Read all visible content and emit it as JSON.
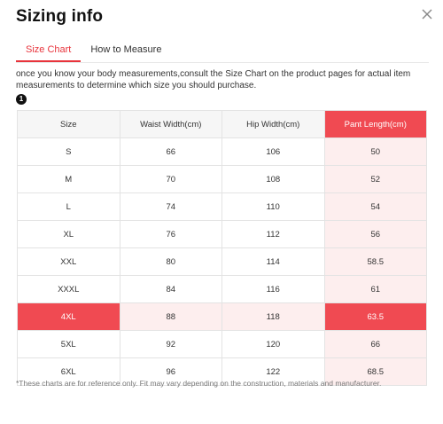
{
  "dialog": {
    "title": "Sizing info",
    "close_icon": "close-icon"
  },
  "tabs": [
    {
      "label": "Size Chart",
      "active": true
    },
    {
      "label": "How to Measure",
      "active": false
    }
  ],
  "intro_text": "once you know your body measurements,consult the Size Chart on the product pages for actual item measurements to determine which size you should purchase.",
  "step_badge": "1",
  "table": {
    "headers": [
      "Size",
      "Waist Width(cm)",
      "Hip Width(cm)",
      "Pant Length(cm)"
    ],
    "highlight_column": 3,
    "highlight_row": 6,
    "rows": [
      [
        "S",
        "66",
        "106",
        "50"
      ],
      [
        "M",
        "70",
        "108",
        "52"
      ],
      [
        "L",
        "74",
        "110",
        "54"
      ],
      [
        "XL",
        "76",
        "112",
        "56"
      ],
      [
        "XXL",
        "80",
        "114",
        "58.5"
      ],
      [
        "XXXL",
        "84",
        "116",
        "61"
      ],
      [
        "4XL",
        "88",
        "118",
        "63.5"
      ],
      [
        "5XL",
        "92",
        "120",
        "66"
      ],
      [
        "6XL",
        "96",
        "122",
        "68.5"
      ]
    ]
  },
  "footnote": "*These charts are for reference only. Fit may vary depending on the construction, materials and manufacturer.",
  "colors": {
    "accent": "#e8343c",
    "highlight": "#f04a52",
    "highlight_light": "#fdeeee"
  }
}
